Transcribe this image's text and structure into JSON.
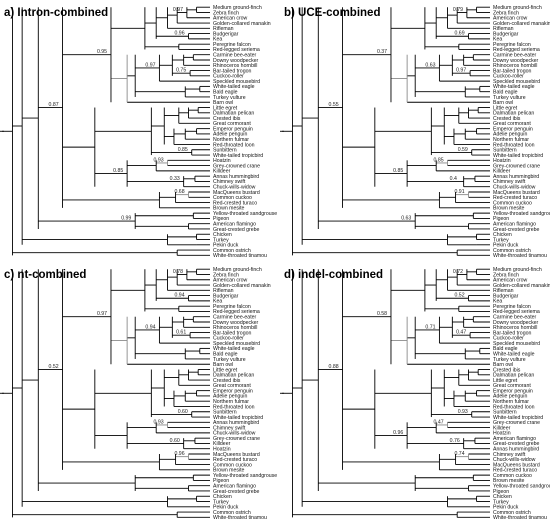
{
  "panels": [
    {
      "title": "a) Intron-combined",
      "taxa": [
        "Medium ground-finch",
        "Zebra finch",
        "American crow",
        "Golden-collared manakin",
        "Rifleman",
        "Budgerigar",
        "Kea",
        "Peregrine falcon",
        "Red-legged seriema",
        "Carmine bee-eater",
        "Downy woodpecker",
        "Rhinoceros hornbill",
        "Bar-tailed trogon",
        "Cuckoo-roller",
        "Speckled mousebird",
        "White-tailed eagle",
        "Bald eagle",
        "Turkey vulture",
        "Barn owl",
        "Little egret",
        "Dalmatian pelican",
        "Crested ibis",
        "Great cormorant",
        "Emperor penguin",
        "Adelie penguin",
        "Northern fulmar",
        "Red-throated loon",
        "Sunbittern",
        "White-tailed tropicbird",
        "Hoatzin",
        "Grey-crowned crane",
        "Killdeer",
        "Annas hummingbird",
        "Chimney swift",
        "Chuck-wills-widow",
        "MacQueens bustard",
        "Common cuckoo",
        "Red-crested turaco",
        "Brown mesite",
        "Yellow-throated sandgrouse",
        "Pigeon",
        "American flamingo",
        "Great-crested grebe",
        "Chicken",
        "Turkey",
        "Pekin duck",
        "Common ostrich",
        "White-throated tinamou"
      ],
      "supports": [
        "0.97",
        "0.96",
        "0.95",
        "0.87",
        "0.75",
        "0.97",
        "0.85",
        "0.33",
        "0.93",
        "0.68",
        "0.85",
        "0.99"
      ]
    },
    {
      "title": "b) UCE-combined",
      "taxa": [
        "Medium ground-finch",
        "Zebra finch",
        "American crow",
        "Golden-collared manakin",
        "Rifleman",
        "Budgerigar",
        "Kea",
        "Peregrine falcon",
        "Red-legged seriema",
        "Carmine bee-eater",
        "Downy woodpecker",
        "Rhinoceros hornbill",
        "Bar-tailed trogon",
        "Cuckoo-roller",
        "Speckled mousebird",
        "White-tailed eagle",
        "Bald eagle",
        "Turkey vulture",
        "Barn owl",
        "Little egret",
        "Dalmatian pelican",
        "Crested ibis",
        "Great cormorant",
        "Emperor penguin",
        "Adelie penguin",
        "Northern fulmar",
        "Red-throated loon",
        "Sunbittern",
        "White-tailed tropicbird",
        "Hoatzin",
        "Grey-crowned crane",
        "Killdeer",
        "Annas hummingbird",
        "Chimney swift",
        "Chuck-wills-widow",
        "MacQueens bustard",
        "Red-crested turaco",
        "Common cuckoo",
        "Brown mesite",
        "Yellow-throated sandgrouse",
        "Pigeon",
        "American flamingo",
        "Great-crested grebe",
        "Chicken",
        "Turkey",
        "Pekin duck",
        "Common ostrich",
        "White-throated tinamou"
      ],
      "supports": [
        "0.79",
        "0.69",
        "0.37",
        "0.55",
        "0.97",
        "0.63",
        "0.59",
        "0.4",
        "0.85",
        "0.91",
        "0.85",
        "0.63"
      ]
    },
    {
      "title": "c) nt-combined",
      "taxa": [
        "Medium ground-finch",
        "Zebra finch",
        "American crow",
        "Golden-collared manakin",
        "Rifleman",
        "Budgerigar",
        "Kea",
        "Peregrine falcon",
        "Red-legged seriema",
        "Carmine bee-eater",
        "Downy woodpecker",
        "Rhinoceros hornbill",
        "Bar-tailed trogon",
        "Cuckoo-roller",
        "Speckled mousebird",
        "White-tailed eagle",
        "Bald eagle",
        "Turkey vulture",
        "Barn owl",
        "Little egret",
        "Dalmatian pelican",
        "Crested ibis",
        "Great cormorant",
        "Emperor penguin",
        "Adelie penguin",
        "Northern fulmar",
        "Red-throated loon",
        "Sunbittern",
        "White-tailed tropicbird",
        "Annas hummingbird",
        "Chimney swift",
        "Chuck-wills-widow",
        "Grey-crowned crane",
        "Killdeer",
        "Hoatzin",
        "MacQueens bustard",
        "Red-crested turaco",
        "Common cuckoo",
        "Brown mesite",
        "Yellow-throated sandgrouse",
        "Pigeon",
        "American flamingo",
        "Great-crested grebe",
        "Chicken",
        "Turkey",
        "Pekin duck",
        "Common ostrich",
        "White-throated tinamou"
      ],
      "supports": [
        "0.78",
        "0.94",
        "0.97",
        "0.52",
        "0.61",
        "0.94",
        "0.60",
        "0.60",
        "0.93",
        "0.96"
      ]
    },
    {
      "title": "d) indel-combined",
      "taxa": [
        "Medium ground-finch",
        "Zebra finch",
        "American crow",
        "Golden-collared manakin",
        "Rifleman",
        "Budgerigar",
        "Kea",
        "Peregrine falcon",
        "Red-legged seriema",
        "Carmine bee-eater",
        "Downy woodpecker",
        "Rhinoceros hornbill",
        "Bar-tailed trogon",
        "Cuckoo-roller",
        "Speckled mousebird",
        "Bald eagle",
        "White-tailed eagle",
        "Turkey vulture",
        "Barn owl",
        "Crested ibis",
        "Dalmatian pelican",
        "Little egret",
        "Great cormorant",
        "Emperor penguin",
        "Adelie penguin",
        "Northern fulmar",
        "Red-throated loon",
        "Sunbittern",
        "White-tailed tropicbird",
        "Grey-crowned crane",
        "Killdeer",
        "Hoatzin",
        "American flamingo",
        "Great-crested grebe",
        "Annas hummingbird",
        "Chimney swift",
        "Chuck-wills-widow",
        "MacQueens bustard",
        "Red-crested turaco",
        "Common cuckoo",
        "Brown mesite",
        "Yellow-throated sandgrouse",
        "Pigeon",
        "Chicken",
        "Turkey",
        "Pekin duck",
        "Common ostrich",
        "White-throated tinamou"
      ],
      "supports": [
        "0.72",
        "0.52",
        "0.58",
        "0.88",
        "0.47",
        "0.71",
        "0.93",
        "0.76",
        "0.47",
        "0.74",
        "0.96"
      ]
    }
  ]
}
